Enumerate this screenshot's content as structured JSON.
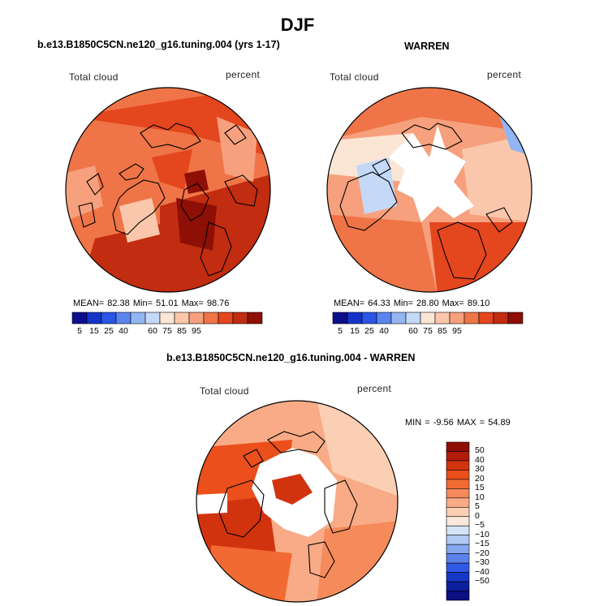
{
  "page_title": "DJF",
  "panels": {
    "model": {
      "title": "b.e13.B1850C5CN.ne120_g16.tuning.004 (yrs 1-17)",
      "left_label": "Total cloud",
      "right_label": "percent",
      "stats": "MEAN=  82.38  Min=  51.01  Max=  98.76"
    },
    "obs": {
      "title": "WARREN",
      "left_label": "Total cloud",
      "right_label": "percent",
      "stats": "MEAN=  64.33  Min=  28.80  Max=  89.10"
    },
    "diff": {
      "title": "b.e13.B1850C5CN.ne120_g16.tuning.004 - WARREN",
      "left_label": "Total cloud",
      "right_label": "percent",
      "stats": "MIN =  -9.56 MAX =  54.89"
    }
  },
  "colorbar_h": {
    "labels": [
      "5",
      "15",
      "25",
      "40",
      "60",
      "75",
      "85",
      "95"
    ],
    "colors": [
      "#0c0f8c",
      "#1434c8",
      "#2a55e6",
      "#5b85ee",
      "#93b6f3",
      "#c4d9f7",
      "#fbe6d6",
      "#fbc7ac",
      "#f6a07d",
      "#ef7447",
      "#e4461e",
      "#c22c10",
      "#8e0f05"
    ]
  },
  "colorbar_v": {
    "labels": [
      "50",
      "40",
      "30",
      "20",
      "15",
      "10",
      "5",
      "0",
      "−5",
      "−10",
      "−15",
      "−20",
      "−30",
      "−40",
      "−50"
    ],
    "colors": [
      "#8e0f05",
      "#b11d0a",
      "#d2330f",
      "#ea4f1c",
      "#f26a33",
      "#f58a5b",
      "#f8ab86",
      "#fbcfb4",
      "#fbe8dc",
      "#d6e4f7",
      "#b1c9f2",
      "#86a6ee",
      "#5b82ec",
      "#2f58e4",
      "#1637c6",
      "#0c1f9c",
      "#0a0f82"
    ]
  },
  "colors": {
    "land_outline": "#000000",
    "missing": "#ffffff"
  }
}
